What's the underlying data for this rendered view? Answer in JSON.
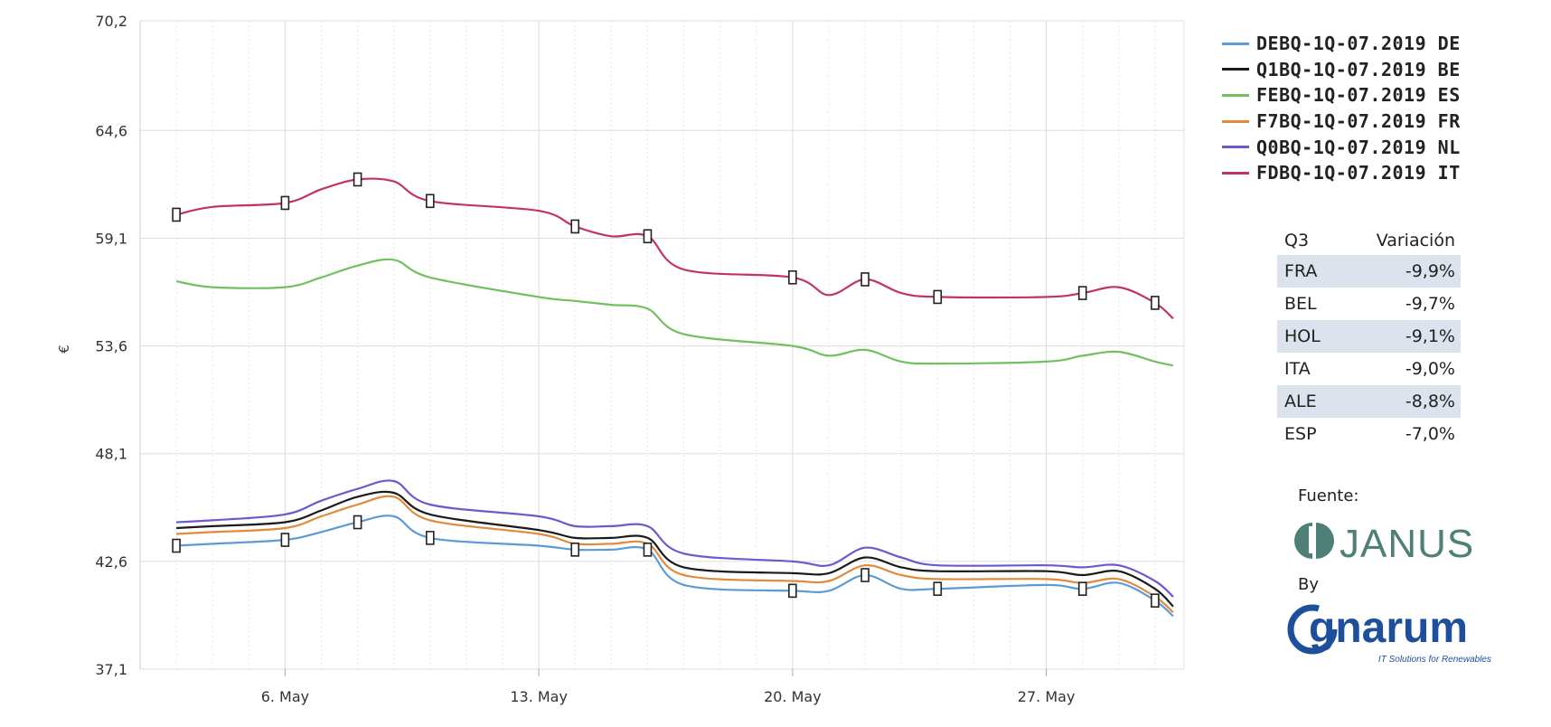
{
  "chart_data": {
    "type": "line",
    "ylabel": "€",
    "ylim": [
      37.1,
      70.2
    ],
    "yticks": [
      "70,2",
      "64,6",
      "59,1",
      "53,6",
      "48,1",
      "42,6",
      "37,1"
    ],
    "ytick_values": [
      70.2,
      64.6,
      59.1,
      53.6,
      48.1,
      42.6,
      37.1
    ],
    "xlim": [
      2.0,
      30.8
    ],
    "xticks": [
      "6. May",
      "13. May",
      "20. May",
      "27. May"
    ],
    "xtick_values": [
      6,
      13,
      20,
      27
    ],
    "grid": true,
    "legend_position": "right",
    "x": [
      3,
      4,
      6,
      7,
      8,
      9,
      10,
      13,
      14,
      15,
      16,
      17,
      20,
      21,
      22,
      23,
      24,
      27,
      28,
      29,
      30,
      30.5
    ],
    "series": [
      {
        "name": "DEBQ-1Q-07.2019 DE",
        "color": "#5b9bd5",
        "values": [
          43.4,
          43.5,
          43.7,
          44.1,
          44.6,
          44.9,
          43.8,
          43.4,
          43.2,
          43.2,
          43.2,
          41.4,
          41.1,
          41.1,
          41.9,
          41.2,
          41.2,
          41.4,
          41.2,
          41.5,
          40.6,
          39.8
        ]
      },
      {
        "name": "Q1BQ-1Q-07.2019 BE",
        "color": "#1a1a1a",
        "values": [
          44.3,
          44.4,
          44.6,
          45.2,
          45.9,
          46.1,
          45.0,
          44.2,
          43.8,
          43.8,
          43.8,
          42.3,
          42.0,
          42.0,
          42.8,
          42.3,
          42.1,
          42.1,
          41.9,
          42.1,
          41.2,
          40.3
        ]
      },
      {
        "name": "FEBQ-1Q-07.2019 ES",
        "color": "#70c060",
        "values": [
          56.9,
          56.6,
          56.6,
          57.1,
          57.7,
          58.0,
          57.1,
          56.1,
          55.9,
          55.7,
          55.5,
          54.2,
          53.6,
          53.1,
          53.4,
          52.8,
          52.7,
          52.8,
          53.1,
          53.3,
          52.8,
          52.6
        ]
      },
      {
        "name": "F7BQ-1Q-07.2019 FR",
        "color": "#e08a3c",
        "values": [
          44.0,
          44.1,
          44.3,
          44.9,
          45.5,
          45.9,
          44.7,
          44.0,
          43.5,
          43.5,
          43.5,
          41.9,
          41.6,
          41.6,
          42.4,
          41.9,
          41.7,
          41.7,
          41.5,
          41.7,
          40.8,
          40.0
        ]
      },
      {
        "name": "Q0BQ-1Q-07.2019 NL",
        "color": "#6a5acd",
        "values": [
          44.6,
          44.7,
          45.0,
          45.7,
          46.3,
          46.7,
          45.5,
          44.9,
          44.4,
          44.4,
          44.4,
          43.0,
          42.6,
          42.4,
          43.3,
          42.8,
          42.4,
          42.4,
          42.3,
          42.4,
          41.6,
          40.8
        ]
      },
      {
        "name": "FDBQ-1Q-07.2019 IT",
        "color": "#c2355a",
        "values": [
          60.3,
          60.7,
          60.9,
          61.6,
          62.1,
          62.0,
          61.0,
          60.5,
          59.7,
          59.2,
          59.2,
          57.5,
          57.1,
          56.2,
          57.0,
          56.3,
          56.1,
          56.1,
          56.3,
          56.6,
          55.8,
          55.0
        ]
      }
    ]
  },
  "variation_table": {
    "header": {
      "label": "Q3",
      "value": "Variación"
    },
    "rows": [
      {
        "label": "FRA",
        "value": "-9,9%"
      },
      {
        "label": "BEL",
        "value": "-9,7%"
      },
      {
        "label": "HOL",
        "value": "-9,1%"
      },
      {
        "label": "ITA",
        "value": "-9,0%"
      },
      {
        "label": "ALE",
        "value": "-8,8%"
      },
      {
        "label": "ESP",
        "value": "-7,0%"
      }
    ]
  },
  "source": {
    "label": "Fuente:",
    "logo_text": "JANUS",
    "logo_color": "#4e8078",
    "by_label": "By",
    "by_logo_text": "gnarum",
    "by_logo_tagline": "IT Solutions for Renewables",
    "by_logo_color": "#1d4f9c"
  }
}
